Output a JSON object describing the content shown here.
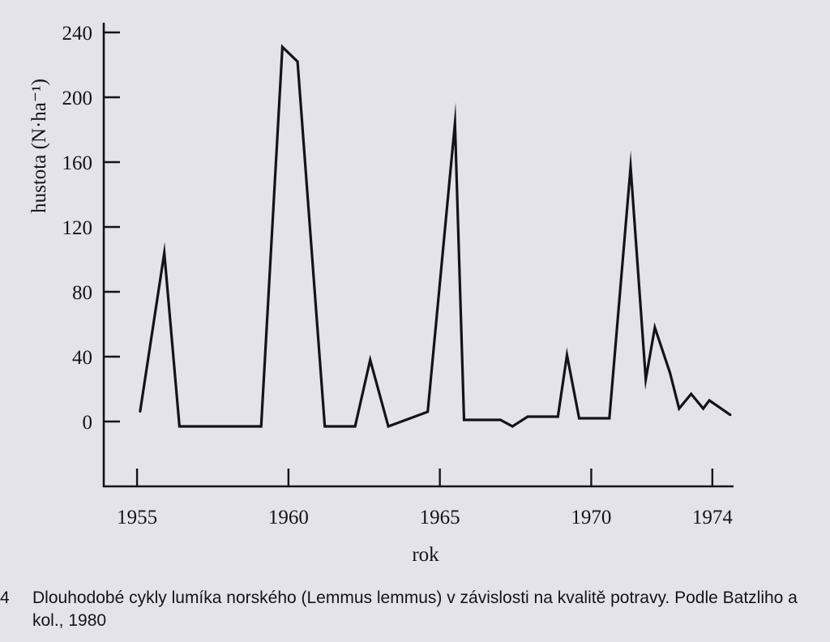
{
  "chart_data": {
    "type": "line",
    "ylabel": "hustota (N·ha⁻¹)",
    "xlabel": "rok",
    "x_ticks": [
      "1955",
      "1960",
      "1965",
      "1970",
      "1974"
    ],
    "y_ticks": [
      0,
      40,
      80,
      120,
      160,
      200,
      240
    ],
    "ylim": [
      -40,
      245
    ],
    "xlim": [
      1953.9,
      1974.7
    ],
    "grid": false,
    "series": [
      {
        "values": [
          {
            "x": 1955.1,
            "y": 6
          },
          {
            "x": 1955.9,
            "y": 104
          },
          {
            "x": 1956.4,
            "y": -3
          },
          {
            "x": 1958.3,
            "y": -3
          },
          {
            "x": 1958.6,
            "y": -3
          },
          {
            "x": 1959.1,
            "y": -3
          },
          {
            "x": 1959.8,
            "y": 231
          },
          {
            "x": 1960.3,
            "y": 222
          },
          {
            "x": 1961.2,
            "y": -3
          },
          {
            "x": 1962.2,
            "y": -3
          },
          {
            "x": 1962.7,
            "y": 38
          },
          {
            "x": 1963.3,
            "y": -3
          },
          {
            "x": 1964.6,
            "y": 6
          },
          {
            "x": 1965.5,
            "y": 184
          },
          {
            "x": 1965.8,
            "y": 1
          },
          {
            "x": 1967.0,
            "y": 1
          },
          {
            "x": 1967.4,
            "y": -3
          },
          {
            "x": 1967.9,
            "y": 3
          },
          {
            "x": 1968.9,
            "y": 3
          },
          {
            "x": 1969.2,
            "y": 41
          },
          {
            "x": 1969.6,
            "y": 2
          },
          {
            "x": 1970.6,
            "y": 2
          },
          {
            "x": 1971.3,
            "y": 157
          },
          {
            "x": 1971.8,
            "y": 26
          },
          {
            "x": 1972.1,
            "y": 58
          },
          {
            "x": 1972.6,
            "y": 30
          },
          {
            "x": 1972.9,
            "y": 8
          },
          {
            "x": 1973.3,
            "y": 17
          },
          {
            "x": 1973.7,
            "y": 8
          },
          {
            "x": 1973.9,
            "y": 13
          },
          {
            "x": 1974.6,
            "y": 4
          }
        ]
      }
    ]
  },
  "caption": {
    "number": "4",
    "text": "Dlouhodobé cykly lumíka norského (Lemmus lemmus) v závislosti na kvalitě potravy. Podle Batzliho a kol., 1980"
  }
}
